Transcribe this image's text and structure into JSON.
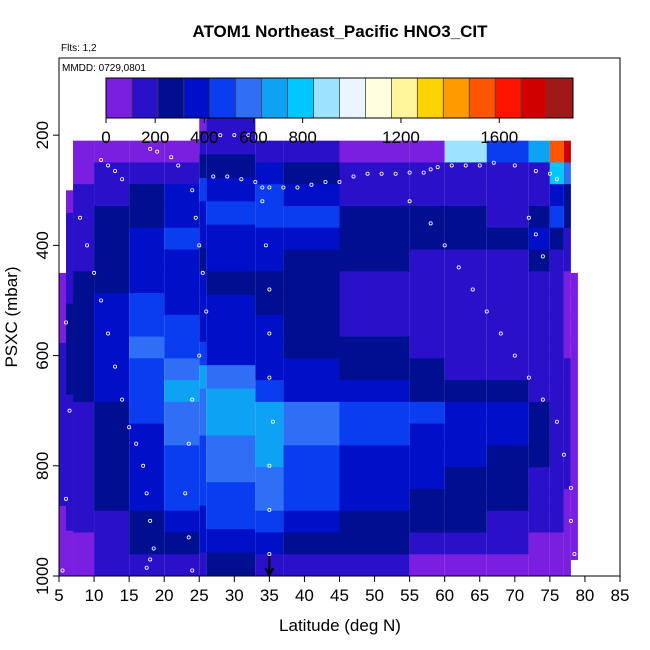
{
  "chart_data": {
    "type": "heatmap",
    "title": "ATOM1 Northeast_Pacific HNO3_CIT",
    "flights_label": "Flts: 1,2",
    "date_label": "MMDD: 0729,0801",
    "xlabel": "Latitude (deg N)",
    "ylabel": "PSXC (mbar)",
    "xlim": [
      5,
      85
    ],
    "ylim": [
      1000,
      60
    ],
    "y_reversed": true,
    "x_ticks": [
      5,
      10,
      15,
      20,
      25,
      30,
      35,
      40,
      45,
      50,
      55,
      60,
      65,
      70,
      75,
      80,
      85
    ],
    "y_ticks": [
      200,
      400,
      600,
      800,
      1000
    ],
    "colorbar": {
      "min": 0,
      "max": 1900,
      "tick_values": [
        0,
        200,
        400,
        600,
        800,
        1200,
        1600
      ],
      "colors": [
        "#7a1fe0",
        "#2a10c8",
        "#000f8f",
        "#0010c8",
        "#0a3cf0",
        "#2e6ff5",
        "#0ea2f5",
        "#00c8ff",
        "#9ce3ff",
        "#e8f6ff",
        "#ffffdf",
        "#fff59a",
        "#ffd200",
        "#ff9a00",
        "#ff5400",
        "#ff1200",
        "#d00000",
        "#a01818"
      ]
    },
    "marker_latitude": 35,
    "pressure_levels": [
      230,
      270,
      310,
      350,
      390,
      430,
      470,
      510,
      550,
      590,
      630,
      670,
      710,
      750,
      790,
      830,
      870,
      910,
      950,
      990
    ],
    "profiles": [
      {
        "lat": [
          5,
          6
        ],
        "top": 470,
        "bottom": 990,
        "values": [
          60,
          80,
          90,
          120,
          150,
          170,
          160,
          200,
          180,
          150,
          100,
          60,
          40
        ]
      },
      {
        "lat": [
          6,
          7
        ],
        "top": 320,
        "bottom": 990,
        "values": [
          80,
          120,
          160,
          180,
          200,
          220,
          250,
          240,
          230,
          210,
          200,
          180,
          160,
          130,
          110,
          100,
          70
        ]
      },
      {
        "lat": [
          7,
          10
        ],
        "top": 230,
        "bottom": 990,
        "values": [
          40,
          80,
          120,
          150,
          170,
          200,
          230,
          260,
          280,
          260,
          240,
          230,
          210,
          190,
          170,
          150,
          130,
          110,
          90,
          60
        ]
      },
      {
        "lat": [
          10,
          15
        ],
        "top": 230,
        "bottom": 990,
        "values": [
          60,
          150,
          200,
          230,
          260,
          280,
          300,
          330,
          360,
          380,
          340,
          320,
          300,
          280,
          260,
          240,
          220,
          190,
          160,
          120
        ]
      },
      {
        "lat": [
          15,
          20
        ],
        "top": 230,
        "bottom": 990,
        "values": [
          60,
          160,
          250,
          300,
          340,
          380,
          420,
          460,
          520,
          560,
          520,
          480,
          450,
          400,
          380,
          360,
          330,
          290,
          220,
          150
        ]
      },
      {
        "lat": [
          20,
          25
        ],
        "top": 230,
        "bottom": 990,
        "values": [
          60,
          180,
          320,
          380,
          500,
          400,
          360,
          400,
          460,
          500,
          560,
          640,
          600,
          540,
          500,
          480,
          440,
          400,
          300,
          180
        ]
      },
      {
        "lat": [
          25,
          26
        ],
        "top": 170,
        "bottom": 990,
        "values": [
          80,
          200,
          300,
          450,
          350,
          320,
          300,
          340,
          380,
          420,
          480,
          640,
          620,
          560,
          520,
          500,
          460,
          420,
          320,
          200
        ]
      },
      {
        "lat": [
          26,
          33
        ],
        "top": 170,
        "bottom": 990,
        "values": [
          160,
          180,
          260,
          420,
          520,
          360,
          320,
          300,
          330,
          360,
          420,
          560,
          720,
          680,
          620,
          580,
          520,
          460,
          340,
          220
        ]
      },
      {
        "lat": [
          33,
          37
        ],
        "top": 230,
        "bottom": 990,
        "values": [
          200,
          340,
          430,
          520,
          400,
          340,
          300,
          300,
          320,
          340,
          380,
          500,
          680,
          660,
          640,
          600,
          620,
          520,
          380,
          200
        ]
      },
      {
        "lat": [
          37,
          45
        ],
        "top": 230,
        "bottom": 990,
        "values": [
          160,
          250,
          340,
          430,
          360,
          300,
          260,
          250,
          260,
          280,
          320,
          420,
          560,
          540,
          500,
          460,
          440,
          420,
          300,
          160
        ]
      },
      {
        "lat": [
          45,
          55
        ],
        "top": 230,
        "bottom": 990,
        "values": [
          60,
          120,
          200,
          300,
          280,
          220,
          200,
          180,
          200,
          220,
          260,
          340,
          480,
          460,
          400,
          380,
          340,
          300,
          220,
          120
        ]
      },
      {
        "lat": [
          55,
          60
        ],
        "top": 230,
        "bottom": 990,
        "values": [
          60,
          120,
          180,
          260,
          240,
          200,
          180,
          170,
          180,
          200,
          220,
          300,
          430,
          420,
          360,
          320,
          300,
          260,
          180,
          100
        ]
      },
      {
        "lat": [
          60,
          66
        ],
        "top": 230,
        "bottom": 990,
        "values": [
          900,
          180,
          160,
          220,
          220,
          190,
          170,
          160,
          170,
          190,
          210,
          260,
          380,
          360,
          320,
          300,
          280,
          240,
          160,
          80
        ]
      },
      {
        "lat": [
          66,
          72
        ],
        "top": 230,
        "bottom": 990,
        "values": [
          500,
          160,
          160,
          200,
          300,
          200,
          170,
          150,
          150,
          170,
          190,
          230,
          320,
          320,
          300,
          260,
          240,
          200,
          140,
          60
        ]
      },
      {
        "lat": [
          72,
          75
        ],
        "top": 230,
        "bottom": 990,
        "values": [
          700,
          200,
          180,
          300,
          400,
          220,
          160,
          140,
          140,
          150,
          160,
          180,
          240,
          240,
          220,
          200,
          180,
          150,
          100,
          50
        ]
      },
      {
        "lat": [
          75,
          77
        ],
        "top": 230,
        "bottom": 990,
        "values": [
          1500,
          800,
          400,
          500,
          300,
          160,
          120,
          110,
          110,
          120,
          140,
          160,
          200,
          200,
          180,
          160,
          140,
          120,
          80,
          40
        ]
      },
      {
        "lat": [
          77,
          78
        ],
        "top": 230,
        "bottom": 990,
        "values": [
          1700,
          600,
          300,
          250,
          200,
          120,
          100,
          90,
          90,
          100,
          110,
          130,
          150,
          150,
          140,
          120,
          100,
          90,
          60,
          40
        ]
      },
      {
        "lat": [
          78,
          79
        ],
        "top": 470,
        "bottom": 960,
        "values": [
          60,
          50,
          50,
          60,
          70,
          80,
          80,
          70,
          60,
          60,
          50,
          40,
          30
        ]
      }
    ],
    "sample_points": [
      {
        "lat": 11,
        "p": 245
      },
      {
        "lat": 12,
        "p": 255
      },
      {
        "lat": 13,
        "p": 265
      },
      {
        "lat": 14,
        "p": 280
      },
      {
        "lat": 18,
        "p": 225
      },
      {
        "lat": 19,
        "p": 230
      },
      {
        "lat": 21,
        "p": 240
      },
      {
        "lat": 22,
        "p": 255
      },
      {
        "lat": 28,
        "p": 200
      },
      {
        "lat": 30,
        "p": 200
      },
      {
        "lat": 32,
        "p": 200
      },
      {
        "lat": 33.5,
        "p": 200
      },
      {
        "lat": 27,
        "p": 275
      },
      {
        "lat": 29,
        "p": 275
      },
      {
        "lat": 31,
        "p": 280
      },
      {
        "lat": 33,
        "p": 285
      },
      {
        "lat": 34,
        "p": 295
      },
      {
        "lat": 35,
        "p": 295
      },
      {
        "lat": 37,
        "p": 295
      },
      {
        "lat": 39,
        "p": 295
      },
      {
        "lat": 41,
        "p": 290
      },
      {
        "lat": 43,
        "p": 285
      },
      {
        "lat": 45,
        "p": 285
      },
      {
        "lat": 47,
        "p": 275
      },
      {
        "lat": 49,
        "p": 270
      },
      {
        "lat": 51,
        "p": 270
      },
      {
        "lat": 53,
        "p": 270
      },
      {
        "lat": 55,
        "p": 268
      },
      {
        "lat": 57,
        "p": 268
      },
      {
        "lat": 58,
        "p": 262
      },
      {
        "lat": 59,
        "p": 258
      },
      {
        "lat": 61,
        "p": 255
      },
      {
        "lat": 63,
        "p": 255
      },
      {
        "lat": 65,
        "p": 255
      },
      {
        "lat": 67,
        "p": 250
      },
      {
        "lat": 70,
        "p": 255
      },
      {
        "lat": 73,
        "p": 265
      },
      {
        "lat": 75,
        "p": 270
      },
      {
        "lat": 76,
        "p": 280
      },
      {
        "lat": 8,
        "p": 350
      },
      {
        "lat": 9,
        "p": 400
      },
      {
        "lat": 10,
        "p": 450
      },
      {
        "lat": 11,
        "p": 500
      },
      {
        "lat": 12,
        "p": 560
      },
      {
        "lat": 13,
        "p": 620
      },
      {
        "lat": 14,
        "p": 680
      },
      {
        "lat": 15,
        "p": 730
      },
      {
        "lat": 16,
        "p": 760
      },
      {
        "lat": 17,
        "p": 800
      },
      {
        "lat": 17.5,
        "p": 850
      },
      {
        "lat": 18,
        "p": 900
      },
      {
        "lat": 18.5,
        "p": 950
      },
      {
        "lat": 17.5,
        "p": 985
      },
      {
        "lat": 18,
        "p": 970
      },
      {
        "lat": 24,
        "p": 300
      },
      {
        "lat": 24.5,
        "p": 350
      },
      {
        "lat": 25,
        "p": 400
      },
      {
        "lat": 25.5,
        "p": 450
      },
      {
        "lat": 26,
        "p": 520
      },
      {
        "lat": 25,
        "p": 600
      },
      {
        "lat": 24,
        "p": 680
      },
      {
        "lat": 23.5,
        "p": 760
      },
      {
        "lat": 23,
        "p": 850
      },
      {
        "lat": 23.5,
        "p": 930
      },
      {
        "lat": 24,
        "p": 990
      },
      {
        "lat": 34,
        "p": 320
      },
      {
        "lat": 34.5,
        "p": 400
      },
      {
        "lat": 35,
        "p": 480
      },
      {
        "lat": 35,
        "p": 560
      },
      {
        "lat": 35,
        "p": 640
      },
      {
        "lat": 35.5,
        "p": 720
      },
      {
        "lat": 35,
        "p": 800
      },
      {
        "lat": 35,
        "p": 880
      },
      {
        "lat": 35,
        "p": 960
      },
      {
        "lat": 55,
        "p": 320
      },
      {
        "lat": 58,
        "p": 360
      },
      {
        "lat": 60,
        "p": 400
      },
      {
        "lat": 62,
        "p": 440
      },
      {
        "lat": 64,
        "p": 480
      },
      {
        "lat": 66,
        "p": 520
      },
      {
        "lat": 68,
        "p": 560
      },
      {
        "lat": 70,
        "p": 600
      },
      {
        "lat": 72,
        "p": 640
      },
      {
        "lat": 74,
        "p": 680
      },
      {
        "lat": 76,
        "p": 720
      },
      {
        "lat": 77,
        "p": 780
      },
      {
        "lat": 78,
        "p": 840
      },
      {
        "lat": 78,
        "p": 900
      },
      {
        "lat": 78.5,
        "p": 960
      },
      {
        "lat": 6,
        "p": 540
      },
      {
        "lat": 6.5,
        "p": 700
      },
      {
        "lat": 6,
        "p": 860
      },
      {
        "lat": 5.5,
        "p": 990
      },
      {
        "lat": 72,
        "p": 350
      },
      {
        "lat": 73,
        "p": 380
      },
      {
        "lat": 74,
        "p": 420
      }
    ]
  }
}
